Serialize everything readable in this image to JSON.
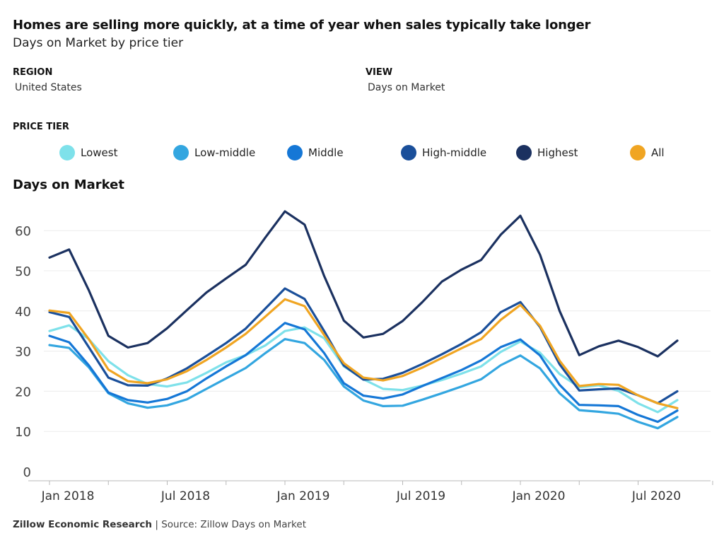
{
  "header": {
    "title": "Homes are selling more quickly, at a time of year when sales typically take longer",
    "subtitle": "Days on Market by price tier"
  },
  "controls": {
    "region_label": "REGION",
    "region_value": "United States",
    "view_label": "VIEW",
    "view_value": "Days on Market",
    "tier_label": "PRICE TIER"
  },
  "legend": [
    {
      "label": "Lowest",
      "color": "#7ee1ea"
    },
    {
      "label": "Low-middle",
      "color": "#33a6e0"
    },
    {
      "label": "Middle",
      "color": "#1577d6"
    },
    {
      "label": "High-middle",
      "color": "#1a4f9a"
    },
    {
      "label": "Highest",
      "color": "#1b3160"
    },
    {
      "label": "All",
      "color": "#f0a522"
    }
  ],
  "chart_heading": "Days on Market",
  "footer": {
    "org": "Zillow Economic Research",
    "separator": "|",
    "source": "Source: Zillow Days on Market"
  },
  "chart_data": {
    "type": "line",
    "title": "Days on Market",
    "xlabel": "",
    "ylabel": "",
    "ylim": [
      0,
      65
    ],
    "yticks": [
      0,
      10,
      20,
      30,
      40,
      50,
      60
    ],
    "grid": true,
    "legend_position": "top",
    "x": [
      "2018-01",
      "2018-02",
      "2018-03",
      "2018-04",
      "2018-05",
      "2018-06",
      "2018-07",
      "2018-08",
      "2018-09",
      "2018-10",
      "2018-11",
      "2018-12",
      "2019-01",
      "2019-02",
      "2019-03",
      "2019-04",
      "2019-05",
      "2019-06",
      "2019-07",
      "2019-08",
      "2019-09",
      "2019-10",
      "2019-11",
      "2019-12",
      "2020-01",
      "2020-02",
      "2020-03",
      "2020-04",
      "2020-05",
      "2020-06",
      "2020-07",
      "2020-08",
      "2020-09"
    ],
    "xtick_labels": [
      {
        "at": "2018-01",
        "label": "Jan 2018"
      },
      {
        "at": "2018-07",
        "label": "Jul 2018"
      },
      {
        "at": "2019-01",
        "label": "Jan 2019"
      },
      {
        "at": "2019-07",
        "label": "Jul 2019"
      },
      {
        "at": "2020-01",
        "label": "Jan 2020"
      },
      {
        "at": "2020-07",
        "label": "Jul 2020"
      }
    ],
    "series": [
      {
        "name": "Lowest",
        "color": "#7ee1ea",
        "values": [
          35,
          36.4,
          33,
          27.5,
          24,
          21.8,
          21.2,
          22.2,
          24.6,
          27.2,
          29,
          31.4,
          35,
          35.9,
          33.2,
          26.2,
          23,
          20.6,
          20.3,
          21.4,
          22.8,
          24.4,
          26.2,
          29.8,
          32.4,
          29.6,
          24.3,
          21,
          21.5,
          20.1,
          17,
          14.8,
          17.8
        ]
      },
      {
        "name": "Low-middle",
        "color": "#33a6e0",
        "values": [
          31.5,
          30.8,
          26,
          19.5,
          17,
          15.9,
          16.5,
          18,
          20.6,
          23.2,
          25.8,
          29.5,
          33,
          32,
          27.8,
          21.2,
          17.7,
          16.3,
          16.4,
          17.9,
          19.5,
          21.2,
          23,
          26.5,
          28.9,
          25.7,
          19.5,
          15.3,
          14.9,
          14.4,
          12.4,
          10.8,
          13.6
        ]
      },
      {
        "name": "Middle",
        "color": "#1577d6",
        "values": [
          33.8,
          32.2,
          26.5,
          19.7,
          17.8,
          17.2,
          18.1,
          20,
          23.2,
          26.2,
          29,
          33,
          37,
          35.4,
          29.5,
          22,
          18.9,
          18.2,
          19.2,
          21.3,
          23.3,
          25.3,
          27.7,
          31,
          32.9,
          28.9,
          21.6,
          16.6,
          16.5,
          16.3,
          14.1,
          12.4,
          15.2
        ]
      },
      {
        "name": "High-middle",
        "color": "#1a4f9a",
        "values": [
          39.7,
          38.5,
          31,
          23.4,
          21.5,
          21.4,
          23.2,
          25.7,
          28.8,
          32,
          35.6,
          40.6,
          45.6,
          43,
          35,
          26.4,
          22.9,
          23.1,
          24.6,
          26.8,
          29.2,
          31.8,
          34.7,
          39.7,
          42.2,
          36,
          26.7,
          20.2,
          20.5,
          20.7,
          19,
          17,
          20
        ]
      },
      {
        "name": "Highest",
        "color": "#1b3160",
        "values": [
          53.3,
          55.3,
          45.2,
          33.8,
          30.9,
          32,
          35.7,
          40.2,
          44.6,
          48.1,
          51.5,
          58.3,
          64.8,
          61.5,
          48.7,
          37.6,
          33.4,
          34.3,
          37.5,
          42.2,
          47.3,
          50.3,
          52.7,
          59,
          63.7,
          54,
          40,
          29,
          31.2,
          32.6,
          31,
          28.7,
          32.6
        ]
      },
      {
        "name": "All",
        "color": "#f0a522",
        "values": [
          40.1,
          39.5,
          33,
          25.4,
          22.5,
          22,
          23,
          25,
          27.8,
          30.9,
          34.3,
          38.6,
          42.9,
          41.2,
          34,
          27,
          23.4,
          22.7,
          23.8,
          25.9,
          28.3,
          30.7,
          33,
          37.8,
          41.5,
          36.3,
          27.6,
          21.3,
          21.8,
          21.6,
          19,
          17,
          15.8
        ]
      }
    ]
  }
}
